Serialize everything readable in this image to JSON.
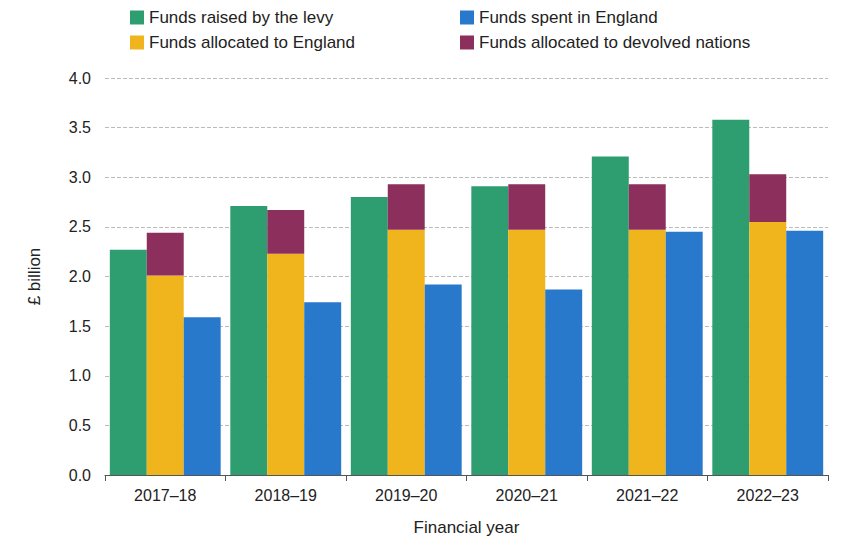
{
  "chart_data": {
    "type": "bar",
    "x_label": "Financial year",
    "y_label": "£ billion",
    "categories": [
      "2017–18",
      "2018–19",
      "2019–20",
      "2020–21",
      "2021–22",
      "2022–23"
    ],
    "series": [
      {
        "name": "Funds raised by the levy",
        "color": "#2e9e70",
        "values": [
          2.27,
          2.71,
          2.8,
          2.91,
          3.21,
          3.58
        ]
      },
      {
        "name": "Funds allocated to England",
        "color": "#f0b41c",
        "stacked": true,
        "values": [
          2.01,
          2.23,
          2.47,
          2.47,
          2.47,
          2.55
        ]
      },
      {
        "name": "Funds allocated to devolved nations",
        "color": "#8c2f5c",
        "stacked": true,
        "values": [
          0.43,
          0.44,
          0.46,
          0.46,
          0.46,
          0.48
        ]
      },
      {
        "name": "Funds spent in England",
        "color": "#2878cc",
        "values": [
          1.59,
          1.74,
          1.92,
          1.87,
          2.45,
          2.46
        ]
      }
    ],
    "ylim": [
      0,
      4
    ],
    "yticks": [
      {
        "value": 0,
        "label": "0.0"
      },
      0.5,
      {
        "value": 1,
        "label": "1.0"
      },
      1.5,
      {
        "value": 2,
        "label": "2.0"
      },
      2.5,
      {
        "value": 3,
        "label": "3.0"
      },
      3.5,
      {
        "value": 4,
        "label": "4.0"
      }
    ],
    "grid": true,
    "legend": "top"
  }
}
